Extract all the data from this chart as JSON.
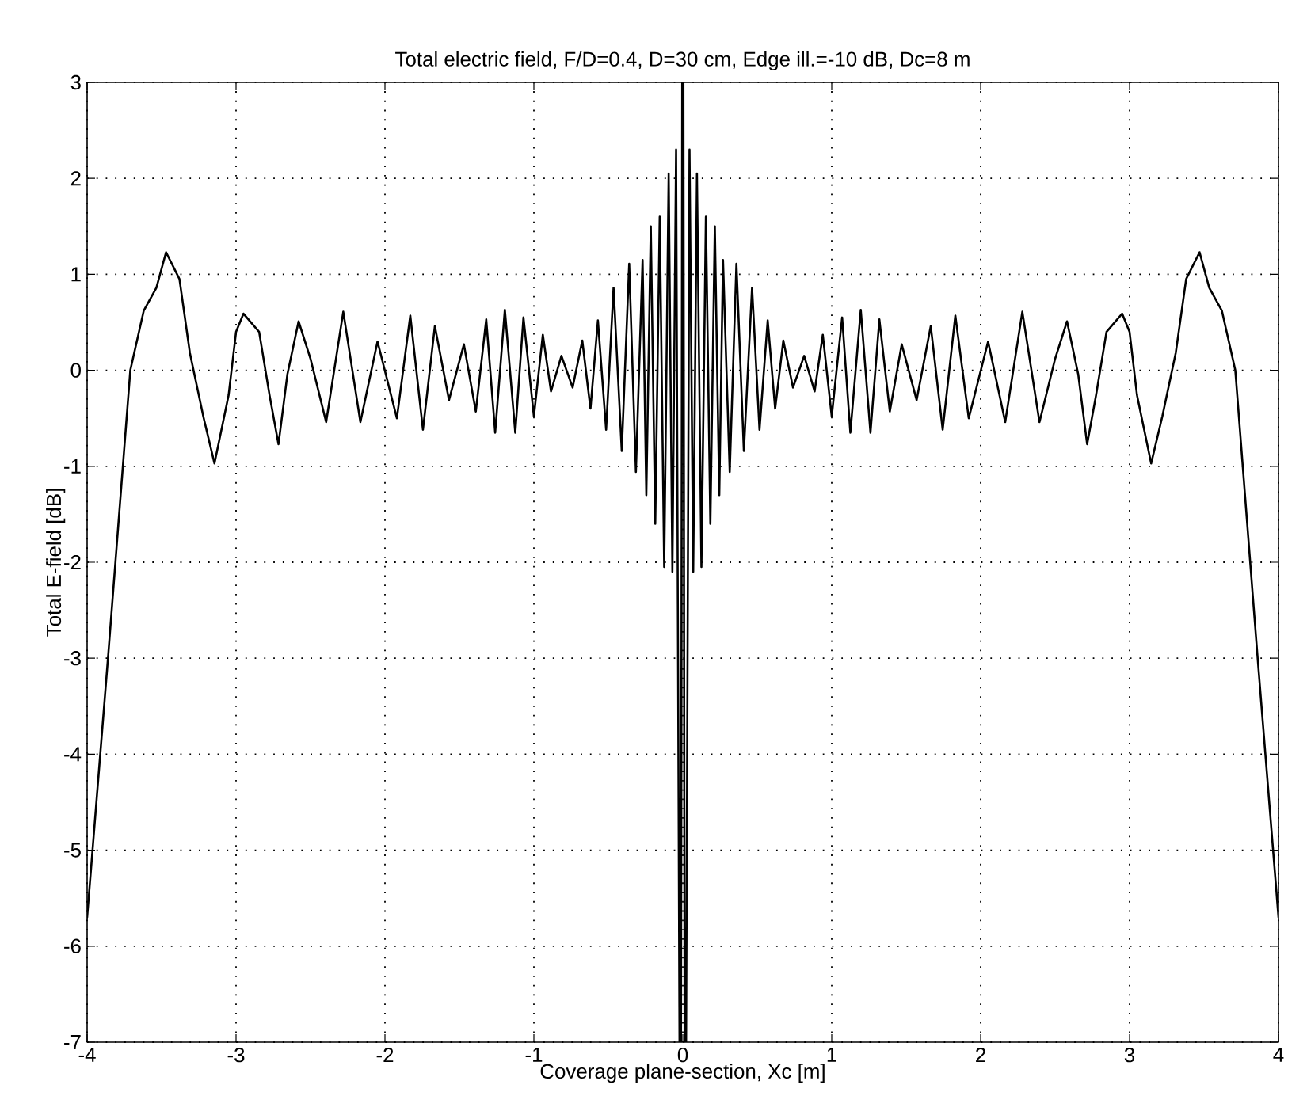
{
  "chart_data": {
    "type": "line",
    "title": "Total electric field, F/D=0.4, D=30 cm, Edge ill.=-10 dB, Dc=8 m",
    "xlabel": "Coverage plane-section, Xc [m]",
    "ylabel": "Total E-field [dB]",
    "xlim": [
      -4,
      4
    ],
    "ylim": [
      -7,
      3
    ],
    "xticks": [
      -4,
      -3,
      -2,
      -1,
      0,
      1,
      2,
      3,
      4
    ],
    "yticks": [
      -7,
      -6,
      -5,
      -4,
      -3,
      -2,
      -1,
      0,
      1,
      2,
      3
    ],
    "grid": true,
    "line_style": "solid",
    "series": [
      {
        "color": "#000000",
        "x": [
          -4,
          -3.86,
          -3.71,
          -3.62,
          -3.535,
          -3.47,
          -3.38,
          -3.31,
          -3.22,
          -3.145,
          -3.05,
          -3.0,
          -2.95,
          -2.845,
          -2.775,
          -2.715,
          -2.655,
          -2.58,
          -2.5,
          -2.395,
          -2.28,
          -2.165,
          -2.05,
          -1.92,
          -1.83,
          -1.745,
          -1.665,
          -1.57,
          -1.47,
          -1.39,
          -1.32,
          -1.26,
          -1.195,
          -1.125,
          -1.07,
          -1.0,
          -0.94,
          -0.885,
          -0.815,
          -0.74,
          -0.675,
          -0.62,
          -0.57,
          -0.515,
          -0.465,
          -0.41,
          -0.36,
          -0.315,
          -0.27,
          -0.245,
          -0.215,
          -0.185,
          -0.155,
          -0.125,
          -0.095,
          -0.07,
          -0.045,
          -0.022,
          -0.012,
          -0.004,
          0.004,
          0.012,
          0.022,
          0.045,
          0.07,
          0.095,
          0.125,
          0.155,
          0.185,
          0.215,
          0.245,
          0.27,
          0.315,
          0.36,
          0.41,
          0.465,
          0.515,
          0.57,
          0.62,
          0.675,
          0.74,
          0.815,
          0.885,
          0.94,
          1.0,
          1.07,
          1.125,
          1.195,
          1.26,
          1.32,
          1.39,
          1.47,
          1.57,
          1.665,
          1.745,
          1.83,
          1.92,
          2.05,
          2.165,
          2.28,
          2.395,
          2.5,
          2.58,
          2.655,
          2.715,
          2.775,
          2.845,
          2.95,
          3.0,
          3.05,
          3.145,
          3.22,
          3.31,
          3.38,
          3.47,
          3.535,
          3.62,
          3.71,
          3.86,
          4
        ],
        "values": [
          -5.7,
          -3.0,
          0,
          0.62,
          0.86,
          1.23,
          0.95,
          0.18,
          -0.48,
          -0.97,
          -0.26,
          0.4,
          0.59,
          0.4,
          -0.26,
          -0.77,
          -0.04,
          0.51,
          0.12,
          -0.54,
          0.61,
          -0.54,
          0.3,
          -0.5,
          0.57,
          -0.62,
          0.46,
          -0.31,
          0.27,
          -0.43,
          0.53,
          -0.65,
          0.63,
          -0.65,
          0.55,
          -0.48,
          0.37,
          -0.22,
          0.15,
          -0.18,
          0.31,
          -0.4,
          0.52,
          -0.62,
          0.86,
          -0.84,
          1.11,
          -1.06,
          1.15,
          -1.3,
          1.5,
          -1.6,
          1.6,
          -2.05,
          2.05,
          -2.1,
          2.3,
          -7,
          -7,
          3,
          3,
          -7,
          -7,
          2.3,
          -2.1,
          2.05,
          -2.05,
          1.6,
          -1.6,
          1.5,
          -1.3,
          1.15,
          -1.06,
          1.11,
          -0.84,
          0.86,
          -0.62,
          0.52,
          -0.4,
          0.31,
          -0.18,
          0.15,
          -0.22,
          0.37,
          -0.48,
          0.55,
          -0.65,
          0.63,
          -0.65,
          0.53,
          -0.43,
          0.27,
          -0.31,
          0.46,
          -0.62,
          0.57,
          -0.5,
          0.3,
          -0.54,
          0.61,
          -0.54,
          0.12,
          0.51,
          -0.04,
          -0.77,
          -0.26,
          0.4,
          0.59,
          0.4,
          -0.26,
          -0.97,
          -0.48,
          0.18,
          0.95,
          1.23,
          0.86,
          0.62,
          0,
          -3.0,
          -5.7
        ]
      }
    ]
  }
}
